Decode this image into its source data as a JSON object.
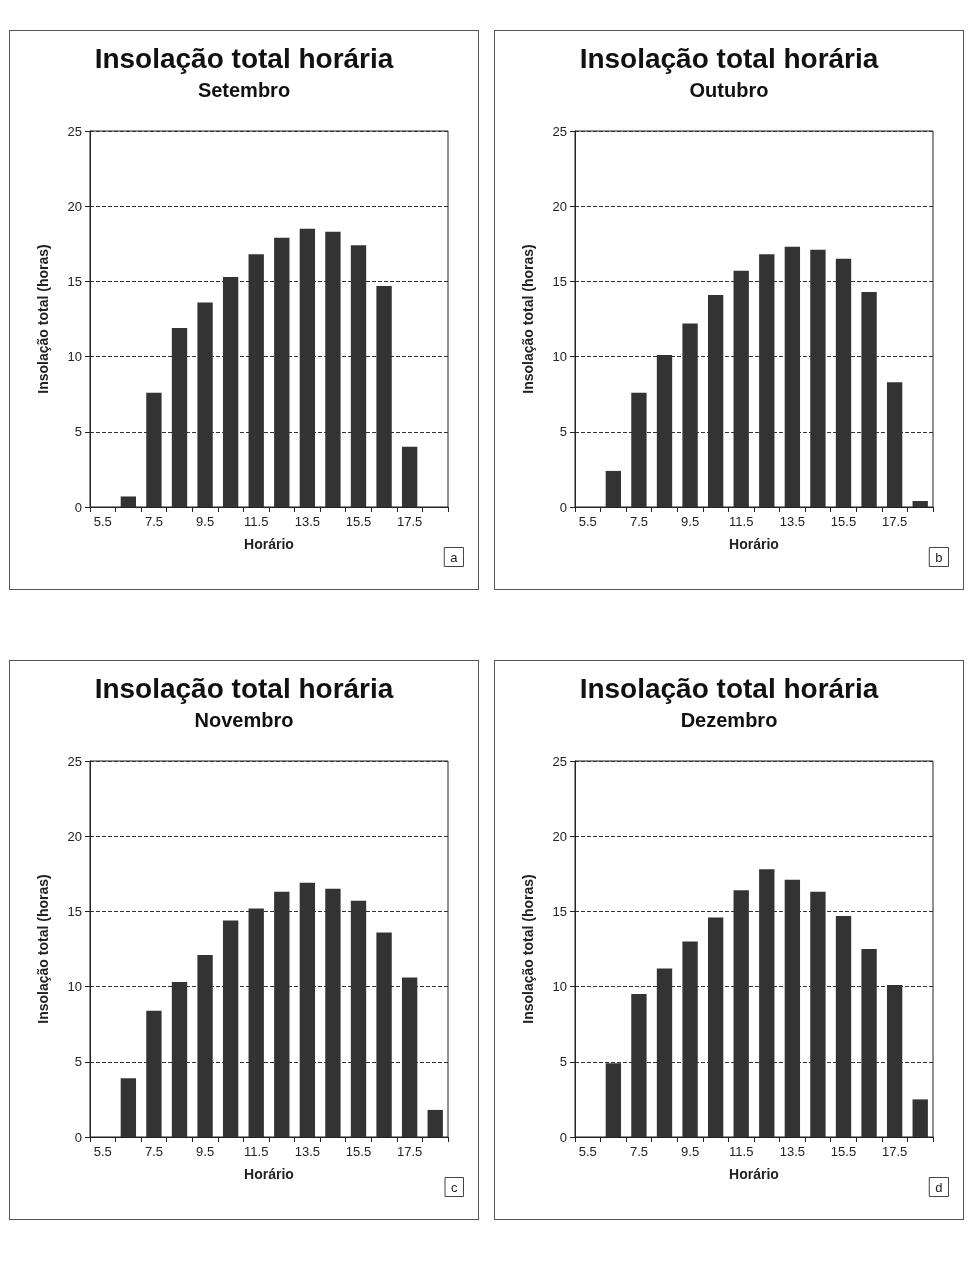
{
  "chart_data": [
    {
      "type": "bar",
      "title": "Insolação total horária",
      "subtitle": "Setembro",
      "xlabel": "Horário",
      "ylabel": "Insolação total (horas)",
      "categories": [
        "5.5",
        null,
        "7.5",
        null,
        "9.5",
        null,
        "11.5",
        null,
        "13.5",
        null,
        "15.5",
        null,
        "17.5",
        null
      ],
      "values": [
        0,
        0.7,
        7.6,
        11.9,
        13.6,
        15.3,
        16.8,
        17.9,
        18.5,
        18.3,
        17.4,
        14.7,
        4.0,
        0
      ],
      "color": "#333333",
      "ylim": [
        0,
        25
      ],
      "yticks": [
        0,
        5,
        10,
        15,
        20,
        25
      ],
      "grid": "y",
      "annotations": [
        "a"
      ]
    },
    {
      "type": "bar",
      "title": "Insolação total horária",
      "subtitle": "Outubro",
      "xlabel": "Horário",
      "ylabel": "Insolação total (horas)",
      "categories": [
        "5.5",
        null,
        "7.5",
        null,
        "9.5",
        null,
        "11.5",
        null,
        "13.5",
        null,
        "15.5",
        null,
        "17.5",
        null
      ],
      "values": [
        0,
        2.4,
        7.6,
        10.1,
        12.2,
        14.1,
        15.7,
        16.8,
        17.3,
        17.1,
        16.5,
        14.3,
        8.3,
        0.4
      ],
      "color": "#333333",
      "ylim": [
        0,
        25
      ],
      "yticks": [
        0,
        5,
        10,
        15,
        20,
        25
      ],
      "grid": "y",
      "annotations": [
        "b"
      ]
    },
    {
      "type": "bar",
      "title": "Insolação total horária",
      "subtitle": "Novembro",
      "xlabel": "Horário",
      "ylabel": "Insolação total (horas)",
      "categories": [
        "5.5",
        null,
        "7.5",
        null,
        "9.5",
        null,
        "11.5",
        null,
        "13.5",
        null,
        "15.5",
        null,
        "17.5",
        null
      ],
      "values": [
        0,
        3.9,
        8.4,
        10.3,
        12.1,
        14.4,
        15.2,
        16.3,
        16.9,
        16.5,
        15.7,
        13.6,
        10.6,
        1.8
      ],
      "color": "#333333",
      "ylim": [
        0,
        25
      ],
      "yticks": [
        0,
        5,
        10,
        15,
        20,
        25
      ],
      "grid": "y",
      "annotations": [
        "c"
      ]
    },
    {
      "type": "bar",
      "title": "Insolação total horária",
      "subtitle": "Dezembro",
      "xlabel": "Horário",
      "ylabel": "Insolação total (horas)",
      "categories": [
        "5.5",
        null,
        "7.5",
        null,
        "9.5",
        null,
        "11.5",
        null,
        "13.5",
        null,
        "15.5",
        null,
        "17.5",
        null
      ],
      "values": [
        0,
        4.9,
        9.5,
        11.2,
        13.0,
        14.6,
        16.4,
        17.8,
        17.1,
        16.3,
        14.7,
        12.5,
        10.1,
        2.5
      ],
      "color": "#333333",
      "ylim": [
        0,
        25
      ],
      "yticks": [
        0,
        5,
        10,
        15,
        20,
        25
      ],
      "grid": "y",
      "annotations": [
        "d"
      ]
    }
  ]
}
